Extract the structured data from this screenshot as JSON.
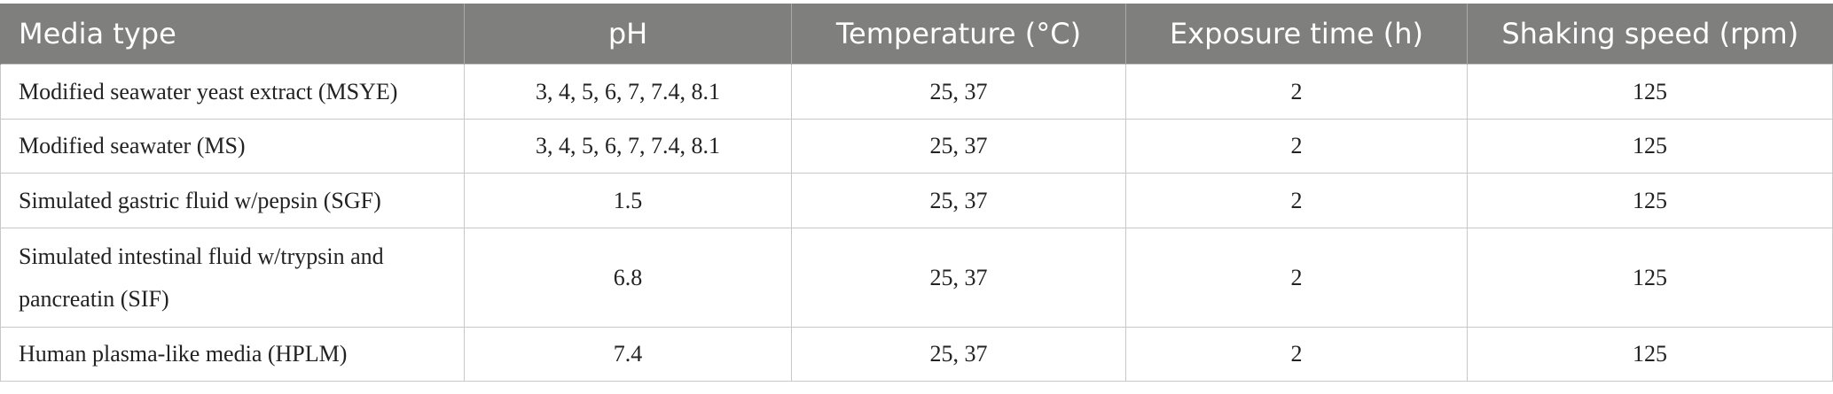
{
  "table": {
    "columns": [
      "Media type",
      "pH",
      "Temperature (°C)",
      "Exposure time (h)",
      "Shaking speed (rpm)"
    ],
    "rows": [
      [
        "Modified seawater yeast extract (MSYE)",
        "3, 4, 5, 6, 7, 7.4, 8.1",
        "25, 37",
        "2",
        "125"
      ],
      [
        "Modified seawater (MS)",
        "3, 4, 5, 6, 7, 7.4, 8.1",
        "25, 37",
        "2",
        "125"
      ],
      [
        "Simulated gastric fluid w/pepsin (SGF)",
        "1.5",
        "25, 37",
        "2",
        "125"
      ],
      [
        "Simulated intestinal fluid w/trypsin and pancreatin (SIF)",
        "6.8",
        "25, 37",
        "2",
        "125"
      ],
      [
        "Human plasma-like media (HPLM)",
        "7.4",
        "25, 37",
        "2",
        "125"
      ]
    ]
  }
}
